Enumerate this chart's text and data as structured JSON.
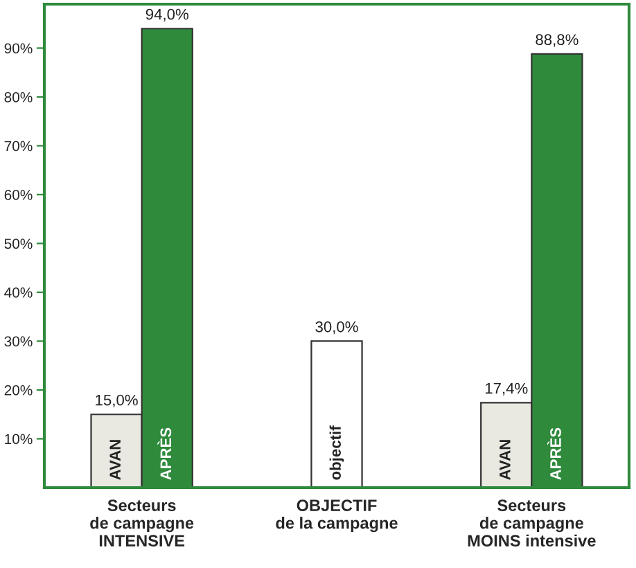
{
  "chart_data": {
    "type": "bar",
    "categories": [
      "Secteurs\nde campagne\nINTENSIVE",
      "OBJECTIF\nde la campagne",
      "Secteurs\nde campagne\nMOINS intensive"
    ],
    "series": [
      {
        "name": "AVAN",
        "color": "#e9e9e2",
        "values": [
          15.0,
          null,
          17.4
        ],
        "value_labels": [
          "15,0%",
          null,
          "17,4%"
        ]
      },
      {
        "name": "APRÈS",
        "color": "#2f8a3c",
        "values": [
          94.0,
          null,
          88.8
        ],
        "value_labels": [
          "94,0%",
          null,
          "88,8%"
        ]
      },
      {
        "name": "objectif",
        "color": "#ffffff",
        "values": [
          null,
          30.0,
          null
        ],
        "value_labels": [
          null,
          "30,0%",
          null
        ]
      }
    ],
    "ylim": [
      0,
      99
    ],
    "yticks": [
      {
        "value": 10,
        "label": "10%"
      },
      {
        "value": 20,
        "label": "20%"
      },
      {
        "value": 30,
        "label": "30%"
      },
      {
        "value": 40,
        "label": "40%"
      },
      {
        "value": 50,
        "label": "50%"
      },
      {
        "value": 60,
        "label": "60%"
      },
      {
        "value": 70,
        "label": "70%"
      },
      {
        "value": 80,
        "label": "80%"
      },
      {
        "value": 90,
        "label": "90%"
      }
    ],
    "grid": false,
    "legend": false
  }
}
